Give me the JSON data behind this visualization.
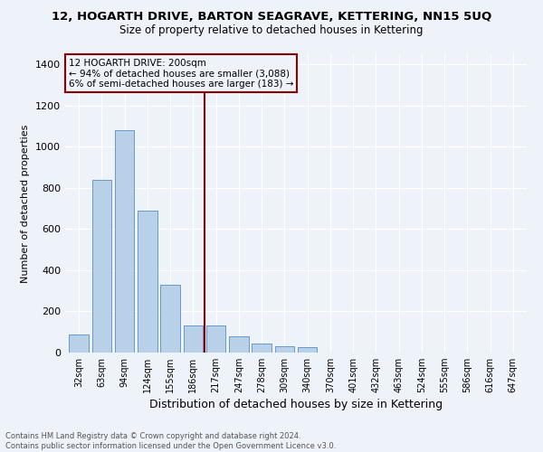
{
  "title": "12, HOGARTH DRIVE, BARTON SEAGRAVE, KETTERING, NN15 5UQ",
  "subtitle": "Size of property relative to detached houses in Kettering",
  "xlabel": "Distribution of detached houses by size in Kettering",
  "ylabel": "Number of detached properties",
  "categories": [
    "32sqm",
    "63sqm",
    "94sqm",
    "124sqm",
    "155sqm",
    "186sqm",
    "217sqm",
    "247sqm",
    "278sqm",
    "309sqm",
    "340sqm",
    "370sqm",
    "401sqm",
    "432sqm",
    "463sqm",
    "524sqm",
    "555sqm",
    "586sqm",
    "616sqm",
    "647sqm"
  ],
  "bar_values": [
    90,
    840,
    1080,
    690,
    330,
    130,
    130,
    80,
    45,
    30,
    25,
    0,
    0,
    0,
    0,
    0,
    0,
    0,
    0,
    0
  ],
  "bar_color": "#b8d0e8",
  "bar_edge_color": "#6699cc",
  "vline_color": "#8b0000",
  "vline_x_index": 6,
  "annotation_title": "12 HOGARTH DRIVE: 200sqm",
  "annotation_line1": "← 94% of detached houses are smaller (3,088)",
  "annotation_line2": "6% of semi-detached houses are larger (183) →",
  "annotation_box_color": "#8b0000",
  "ylim": [
    0,
    1450
  ],
  "yticks": [
    0,
    200,
    400,
    600,
    800,
    1000,
    1200,
    1400
  ],
  "footer_line1": "Contains HM Land Registry data © Crown copyright and database right 2024.",
  "footer_line2": "Contains public sector information licensed under the Open Government Licence v3.0.",
  "background_color": "#eef2f9",
  "grid_color": "#ffffff"
}
